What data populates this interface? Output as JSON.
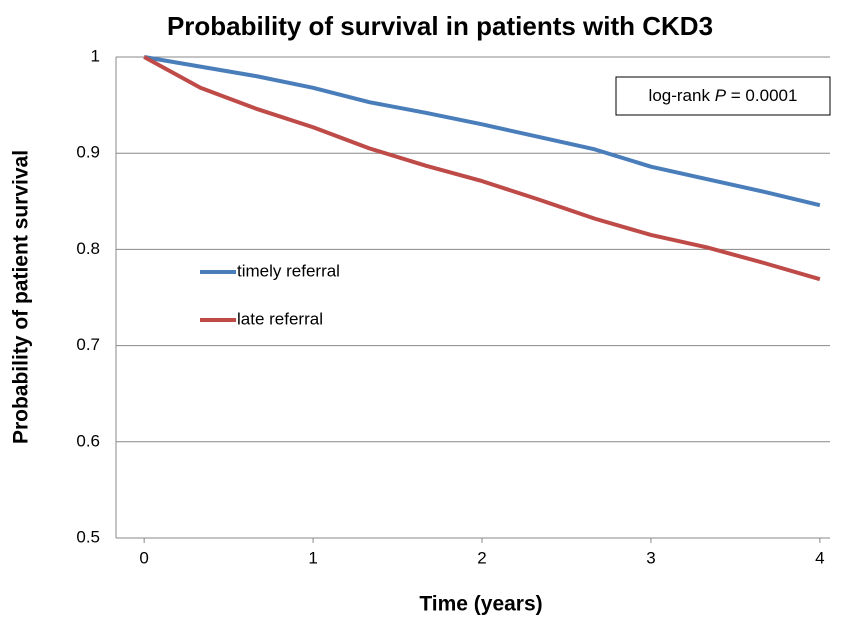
{
  "chart_data": {
    "type": "line",
    "title": "Probability of survival in patients with  CKD3",
    "xlabel": "Time (years)",
    "ylabel": "Probability of patient survival",
    "annotation": {
      "prefix": "log-rank",
      "variable": "P",
      "rest": "= 0.0001"
    },
    "x": [
      0,
      0.333,
      0.667,
      1,
      1.333,
      1.667,
      2,
      2.333,
      2.667,
      3,
      3.333,
      3.667,
      4
    ],
    "series": [
      {
        "name": "timely referral",
        "color": "#4a7ebb",
        "values": [
          1.0,
          0.99,
          0.98,
          0.968,
          0.953,
          0.942,
          0.93,
          0.917,
          0.904,
          0.886,
          0.873,
          0.86,
          0.846
        ]
      },
      {
        "name": "late referral",
        "color": "#be4b48",
        "values": [
          1.0,
          0.968,
          0.946,
          0.927,
          0.905,
          0.887,
          0.871,
          0.852,
          0.832,
          0.815,
          0.802,
          0.786,
          0.769
        ]
      }
    ],
    "xlim": [
      -0.1667,
      4.06
    ],
    "xticks": [
      0,
      1,
      2,
      3,
      4
    ],
    "ylim": [
      0.5,
      1
    ],
    "yticks": [
      0.5,
      0.6,
      0.7,
      0.8,
      0.9,
      1
    ],
    "grid": true,
    "legend": "left"
  }
}
